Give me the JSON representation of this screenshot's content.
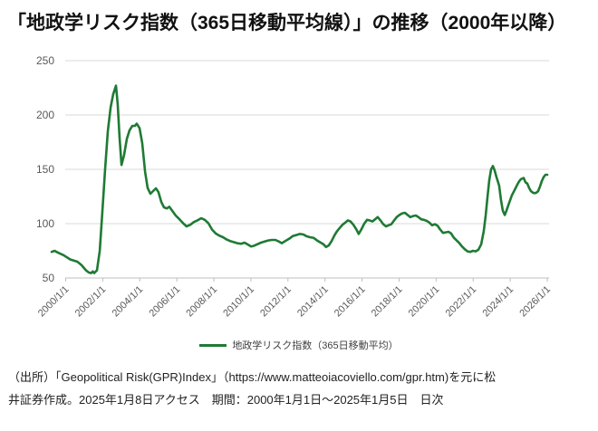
{
  "title": "「地政学リスク指数（365日移動平均線）」の推移（2000年以降）",
  "legend": {
    "label": "地政学リスク指数（365日移動平均）"
  },
  "source_note": {
    "line1": "（出所）「Geopolitical Risk(GPR)Index」（https://www.matteoiacoviello.com/gpr.htm)を元に松",
    "line2": "井証券作成。2025年1月8日アクセス　期間：2000年1月1日～2025年1月5日　日次"
  },
  "colors": {
    "line": "#1f7a34",
    "grid": "#d9d9d9",
    "axis": "#bfbfbf",
    "tick_label": "#595959",
    "title_text": "#111111",
    "note_text": "#222222"
  },
  "chart_data": {
    "type": "line",
    "title": "地政学リスク指数（365日移動平均線）の推移（2000年以降）",
    "xlabel": "",
    "ylabel": "",
    "ylim": [
      50,
      250
    ],
    "y_ticks": [
      50,
      100,
      150,
      200,
      250
    ],
    "x_tick_labels": [
      "2000/1/1",
      "2002/1/1",
      "2004/1/1",
      "2006/1/1",
      "2008/1/1",
      "2010/1/1",
      "2012/1/1",
      "2014/1/1",
      "2016/1/1",
      "2018/1/1",
      "2020/1/1",
      "2022/1/1",
      "2024/1/1",
      "2026/1/1"
    ],
    "x_range_dates": [
      "2000/1/1",
      "2025/1/5"
    ],
    "grid": "horizontal",
    "legend_position": "bottom",
    "series": [
      {
        "name": "地政学リスク指数（365日移動平均）",
        "color": "#1f7a34",
        "points": [
          [
            2000.0,
            74
          ],
          [
            2000.15,
            75
          ],
          [
            2000.3,
            73.5
          ],
          [
            2000.6,
            71
          ],
          [
            2000.95,
            67
          ],
          [
            2001.3,
            65
          ],
          [
            2001.5,
            62
          ],
          [
            2001.74,
            57
          ],
          [
            2001.88,
            55
          ],
          [
            2002.0,
            54.5
          ],
          [
            2002.08,
            56
          ],
          [
            2002.15,
            54.5
          ],
          [
            2002.29,
            57
          ],
          [
            2002.43,
            75
          ],
          [
            2002.56,
            110
          ],
          [
            2002.7,
            150
          ],
          [
            2002.84,
            185
          ],
          [
            2002.98,
            207
          ],
          [
            2003.11,
            219
          ],
          [
            2003.25,
            227
          ],
          [
            2003.34,
            210
          ],
          [
            2003.43,
            180
          ],
          [
            2003.53,
            154
          ],
          [
            2003.66,
            163
          ],
          [
            2003.8,
            178
          ],
          [
            2003.94,
            186
          ],
          [
            2004.08,
            190
          ],
          [
            2004.21,
            190
          ],
          [
            2004.3,
            192
          ],
          [
            2004.44,
            188
          ],
          [
            2004.58,
            174
          ],
          [
            2004.72,
            148
          ],
          [
            2004.85,
            133
          ],
          [
            2004.99,
            127.5
          ],
          [
            2005.13,
            130
          ],
          [
            2005.27,
            132.5
          ],
          [
            2005.4,
            129
          ],
          [
            2005.54,
            120
          ],
          [
            2005.68,
            115
          ],
          [
            2005.82,
            114
          ],
          [
            2005.95,
            115.5
          ],
          [
            2006.09,
            112
          ],
          [
            2006.27,
            107.5
          ],
          [
            2006.46,
            104
          ],
          [
            2006.64,
            100.5
          ],
          [
            2006.82,
            97.5
          ],
          [
            2007.01,
            99
          ],
          [
            2007.19,
            101.5
          ],
          [
            2007.37,
            103
          ],
          [
            2007.56,
            105
          ],
          [
            2007.74,
            103.5
          ],
          [
            2007.92,
            100.5
          ],
          [
            2008.11,
            94.5
          ],
          [
            2008.29,
            91
          ],
          [
            2008.47,
            89
          ],
          [
            2008.66,
            87.5
          ],
          [
            2008.84,
            85.5
          ],
          [
            2009.02,
            84
          ],
          [
            2009.2,
            83
          ],
          [
            2009.39,
            82
          ],
          [
            2009.57,
            81.5
          ],
          [
            2009.75,
            82.5
          ],
          [
            2009.94,
            80.5
          ],
          [
            2010.07,
            79
          ],
          [
            2010.21,
            79.5
          ],
          [
            2010.39,
            81
          ],
          [
            2010.58,
            82.5
          ],
          [
            2010.76,
            83.5
          ],
          [
            2010.94,
            84.5
          ],
          [
            2011.13,
            85
          ],
          [
            2011.31,
            85
          ],
          [
            2011.49,
            83.5
          ],
          [
            2011.63,
            82
          ],
          [
            2011.81,
            84
          ],
          [
            2012.0,
            86
          ],
          [
            2012.18,
            88.5
          ],
          [
            2012.36,
            89.5
          ],
          [
            2012.55,
            90.5
          ],
          [
            2012.73,
            90
          ],
          [
            2012.87,
            88.5
          ],
          [
            2013.05,
            87.5
          ],
          [
            2013.23,
            87
          ],
          [
            2013.42,
            84.5
          ],
          [
            2013.6,
            82.5
          ],
          [
            2013.74,
            81
          ],
          [
            2013.87,
            78.5
          ],
          [
            2014.01,
            80
          ],
          [
            2014.15,
            84
          ],
          [
            2014.29,
            89
          ],
          [
            2014.42,
            93
          ],
          [
            2014.56,
            96
          ],
          [
            2014.7,
            99
          ],
          [
            2014.84,
            101
          ],
          [
            2014.97,
            103
          ],
          [
            2015.11,
            102
          ],
          [
            2015.25,
            99
          ],
          [
            2015.39,
            95
          ],
          [
            2015.52,
            90.5
          ],
          [
            2015.66,
            95
          ],
          [
            2015.8,
            100
          ],
          [
            2015.94,
            103.5
          ],
          [
            2016.07,
            103
          ],
          [
            2016.21,
            102
          ],
          [
            2016.35,
            104
          ],
          [
            2016.48,
            106
          ],
          [
            2016.62,
            103
          ],
          [
            2016.76,
            99.5
          ],
          [
            2016.9,
            97.5
          ],
          [
            2017.03,
            98.5
          ],
          [
            2017.17,
            99.5
          ],
          [
            2017.31,
            103
          ],
          [
            2017.44,
            106
          ],
          [
            2017.58,
            108
          ],
          [
            2017.72,
            109.5
          ],
          [
            2017.86,
            110
          ],
          [
            2017.99,
            108
          ],
          [
            2018.13,
            106
          ],
          [
            2018.27,
            107
          ],
          [
            2018.41,
            107.5
          ],
          [
            2018.54,
            106
          ],
          [
            2018.68,
            104
          ],
          [
            2018.82,
            103.5
          ],
          [
            2018.96,
            102.5
          ],
          [
            2019.09,
            101
          ],
          [
            2019.23,
            98.5
          ],
          [
            2019.37,
            99.5
          ],
          [
            2019.51,
            98
          ],
          [
            2019.64,
            94.5
          ],
          [
            2019.78,
            91.5
          ],
          [
            2019.92,
            92
          ],
          [
            2020.06,
            92.5
          ],
          [
            2020.19,
            91
          ],
          [
            2020.33,
            87
          ],
          [
            2020.47,
            84.5
          ],
          [
            2020.61,
            82
          ],
          [
            2020.74,
            79
          ],
          [
            2020.88,
            76.5
          ],
          [
            2021.02,
            74.5
          ],
          [
            2021.16,
            74
          ],
          [
            2021.29,
            75
          ],
          [
            2021.43,
            74.5
          ],
          [
            2021.57,
            76
          ],
          [
            2021.71,
            81
          ],
          [
            2021.84,
            93
          ],
          [
            2021.94,
            108
          ],
          [
            2022.03,
            125
          ],
          [
            2022.12,
            140
          ],
          [
            2022.21,
            150
          ],
          [
            2022.3,
            153
          ],
          [
            2022.39,
            149
          ],
          [
            2022.48,
            143
          ],
          [
            2022.62,
            135
          ],
          [
            2022.71,
            122
          ],
          [
            2022.8,
            112
          ],
          [
            2022.9,
            108
          ],
          [
            2022.99,
            112
          ],
          [
            2023.12,
            119
          ],
          [
            2023.26,
            126
          ],
          [
            2023.4,
            131
          ],
          [
            2023.54,
            136
          ],
          [
            2023.63,
            139
          ],
          [
            2023.72,
            141
          ],
          [
            2023.86,
            142
          ],
          [
            2023.95,
            138
          ],
          [
            2024.04,
            137
          ],
          [
            2024.13,
            133
          ],
          [
            2024.22,
            130
          ],
          [
            2024.32,
            128.5
          ],
          [
            2024.41,
            128
          ],
          [
            2024.5,
            128.5
          ],
          [
            2024.59,
            130
          ],
          [
            2024.68,
            134
          ],
          [
            2024.77,
            139
          ],
          [
            2024.87,
            143
          ],
          [
            2024.96,
            145
          ],
          [
            2025.05,
            145
          ]
        ]
      }
    ]
  }
}
